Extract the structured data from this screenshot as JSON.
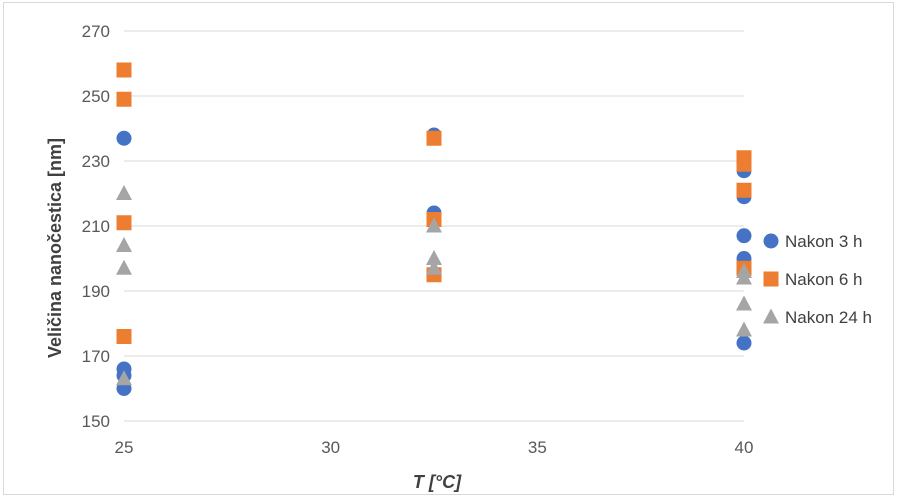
{
  "chart_data": {
    "type": "scatter",
    "xlabel": "T [°C]",
    "ylabel": "Veličina nanočestica [nm]",
    "xlim": [
      25,
      40
    ],
    "ylim": [
      150,
      270
    ],
    "xticks": [
      25,
      30,
      35,
      40
    ],
    "yticks": [
      150,
      170,
      190,
      210,
      230,
      250,
      270
    ],
    "grid": "horizontal",
    "legend_position": "right",
    "series": [
      {
        "name": "Nakon 3 h",
        "marker": "circle",
        "color": "#4472c4",
        "points": [
          [
            25,
            237
          ],
          [
            25,
            166
          ],
          [
            25,
            164
          ],
          [
            25,
            160
          ],
          [
            32.5,
            238
          ],
          [
            32.5,
            214
          ],
          [
            32.5,
            212
          ],
          [
            40,
            227
          ],
          [
            40,
            219
          ],
          [
            40,
            207
          ],
          [
            40,
            200
          ],
          [
            40,
            174
          ]
        ]
      },
      {
        "name": "Nakon 6 h",
        "marker": "square",
        "color": "#ed7d31",
        "points": [
          [
            25,
            258
          ],
          [
            25,
            249
          ],
          [
            25,
            211
          ],
          [
            25,
            176
          ],
          [
            32.5,
            237
          ],
          [
            32.5,
            212
          ],
          [
            32.5,
            195
          ],
          [
            40,
            231
          ],
          [
            40,
            229
          ],
          [
            40,
            221
          ],
          [
            40,
            197
          ]
        ]
      },
      {
        "name": "Nakon 24 h",
        "marker": "triangle",
        "color": "#a5a5a5",
        "points": [
          [
            25,
            220
          ],
          [
            25,
            204
          ],
          [
            25,
            197
          ],
          [
            25,
            163
          ],
          [
            32.5,
            210
          ],
          [
            32.5,
            200
          ],
          [
            32.5,
            197
          ],
          [
            40,
            196
          ],
          [
            40,
            194
          ],
          [
            40,
            186
          ],
          [
            40,
            178
          ]
        ]
      }
    ]
  }
}
